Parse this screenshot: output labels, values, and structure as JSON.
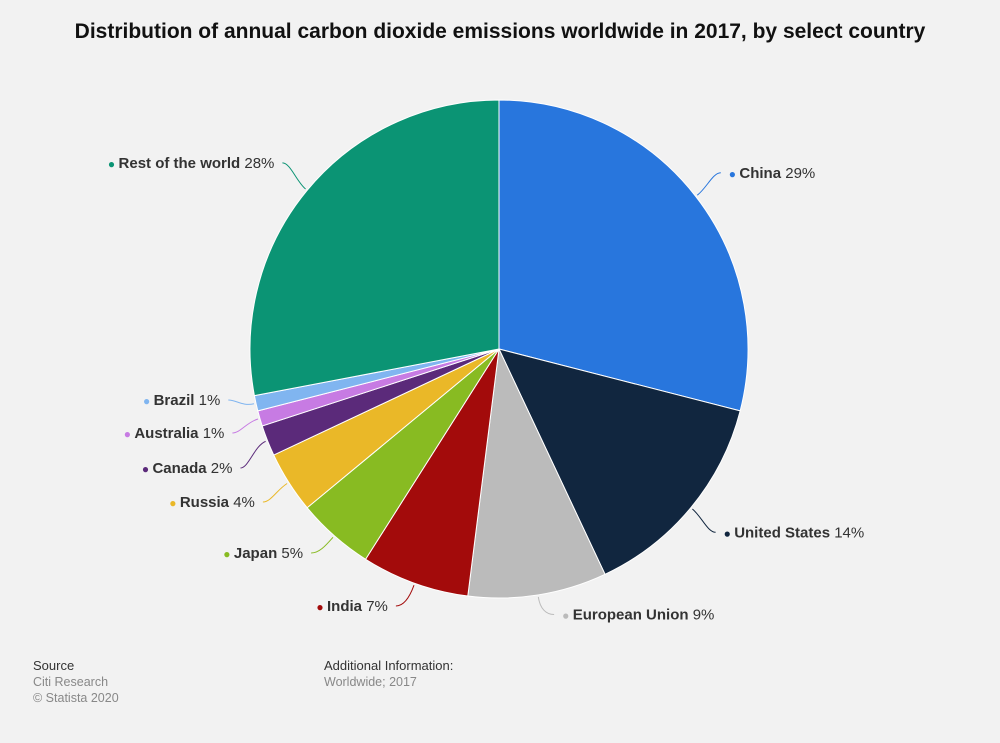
{
  "chart_data": {
    "type": "pie",
    "title": "Distribution of annual carbon dioxide emissions worldwide in 2017, by select country",
    "unit": "%",
    "slices": [
      {
        "label": "China",
        "value": 29,
        "display": "29%",
        "color": "#2876dd"
      },
      {
        "label": "United States",
        "value": 14,
        "display": "14%",
        "color": "#11263f"
      },
      {
        "label": "European Union",
        "value": 9,
        "display": "9%",
        "color": "#bbbbbb"
      },
      {
        "label": "India",
        "value": 7,
        "display": "7%",
        "color": "#a30b0b"
      },
      {
        "label": "Japan",
        "value": 5,
        "display": "5%",
        "color": "#88bb22"
      },
      {
        "label": "Russia",
        "value": 4,
        "display": "4%",
        "color": "#eab828"
      },
      {
        "label": "Canada",
        "value": 2,
        "display": "2%",
        "color": "#5b2a7a"
      },
      {
        "label": "Australia",
        "value": 1,
        "display": "1%",
        "color": "#c77be3"
      },
      {
        "label": "Brazil",
        "value": 1,
        "display": "1%",
        "color": "#80b5f0"
      },
      {
        "label": "Rest of the world",
        "value": 28,
        "display": "28%",
        "color": "#0b9474"
      }
    ]
  },
  "footer": {
    "source_heading": "Source",
    "source_name": "Citi Research",
    "copyright": "© Statista 2020",
    "additional_heading": "Additional Information:",
    "additional_text": "Worldwide; 2017"
  }
}
